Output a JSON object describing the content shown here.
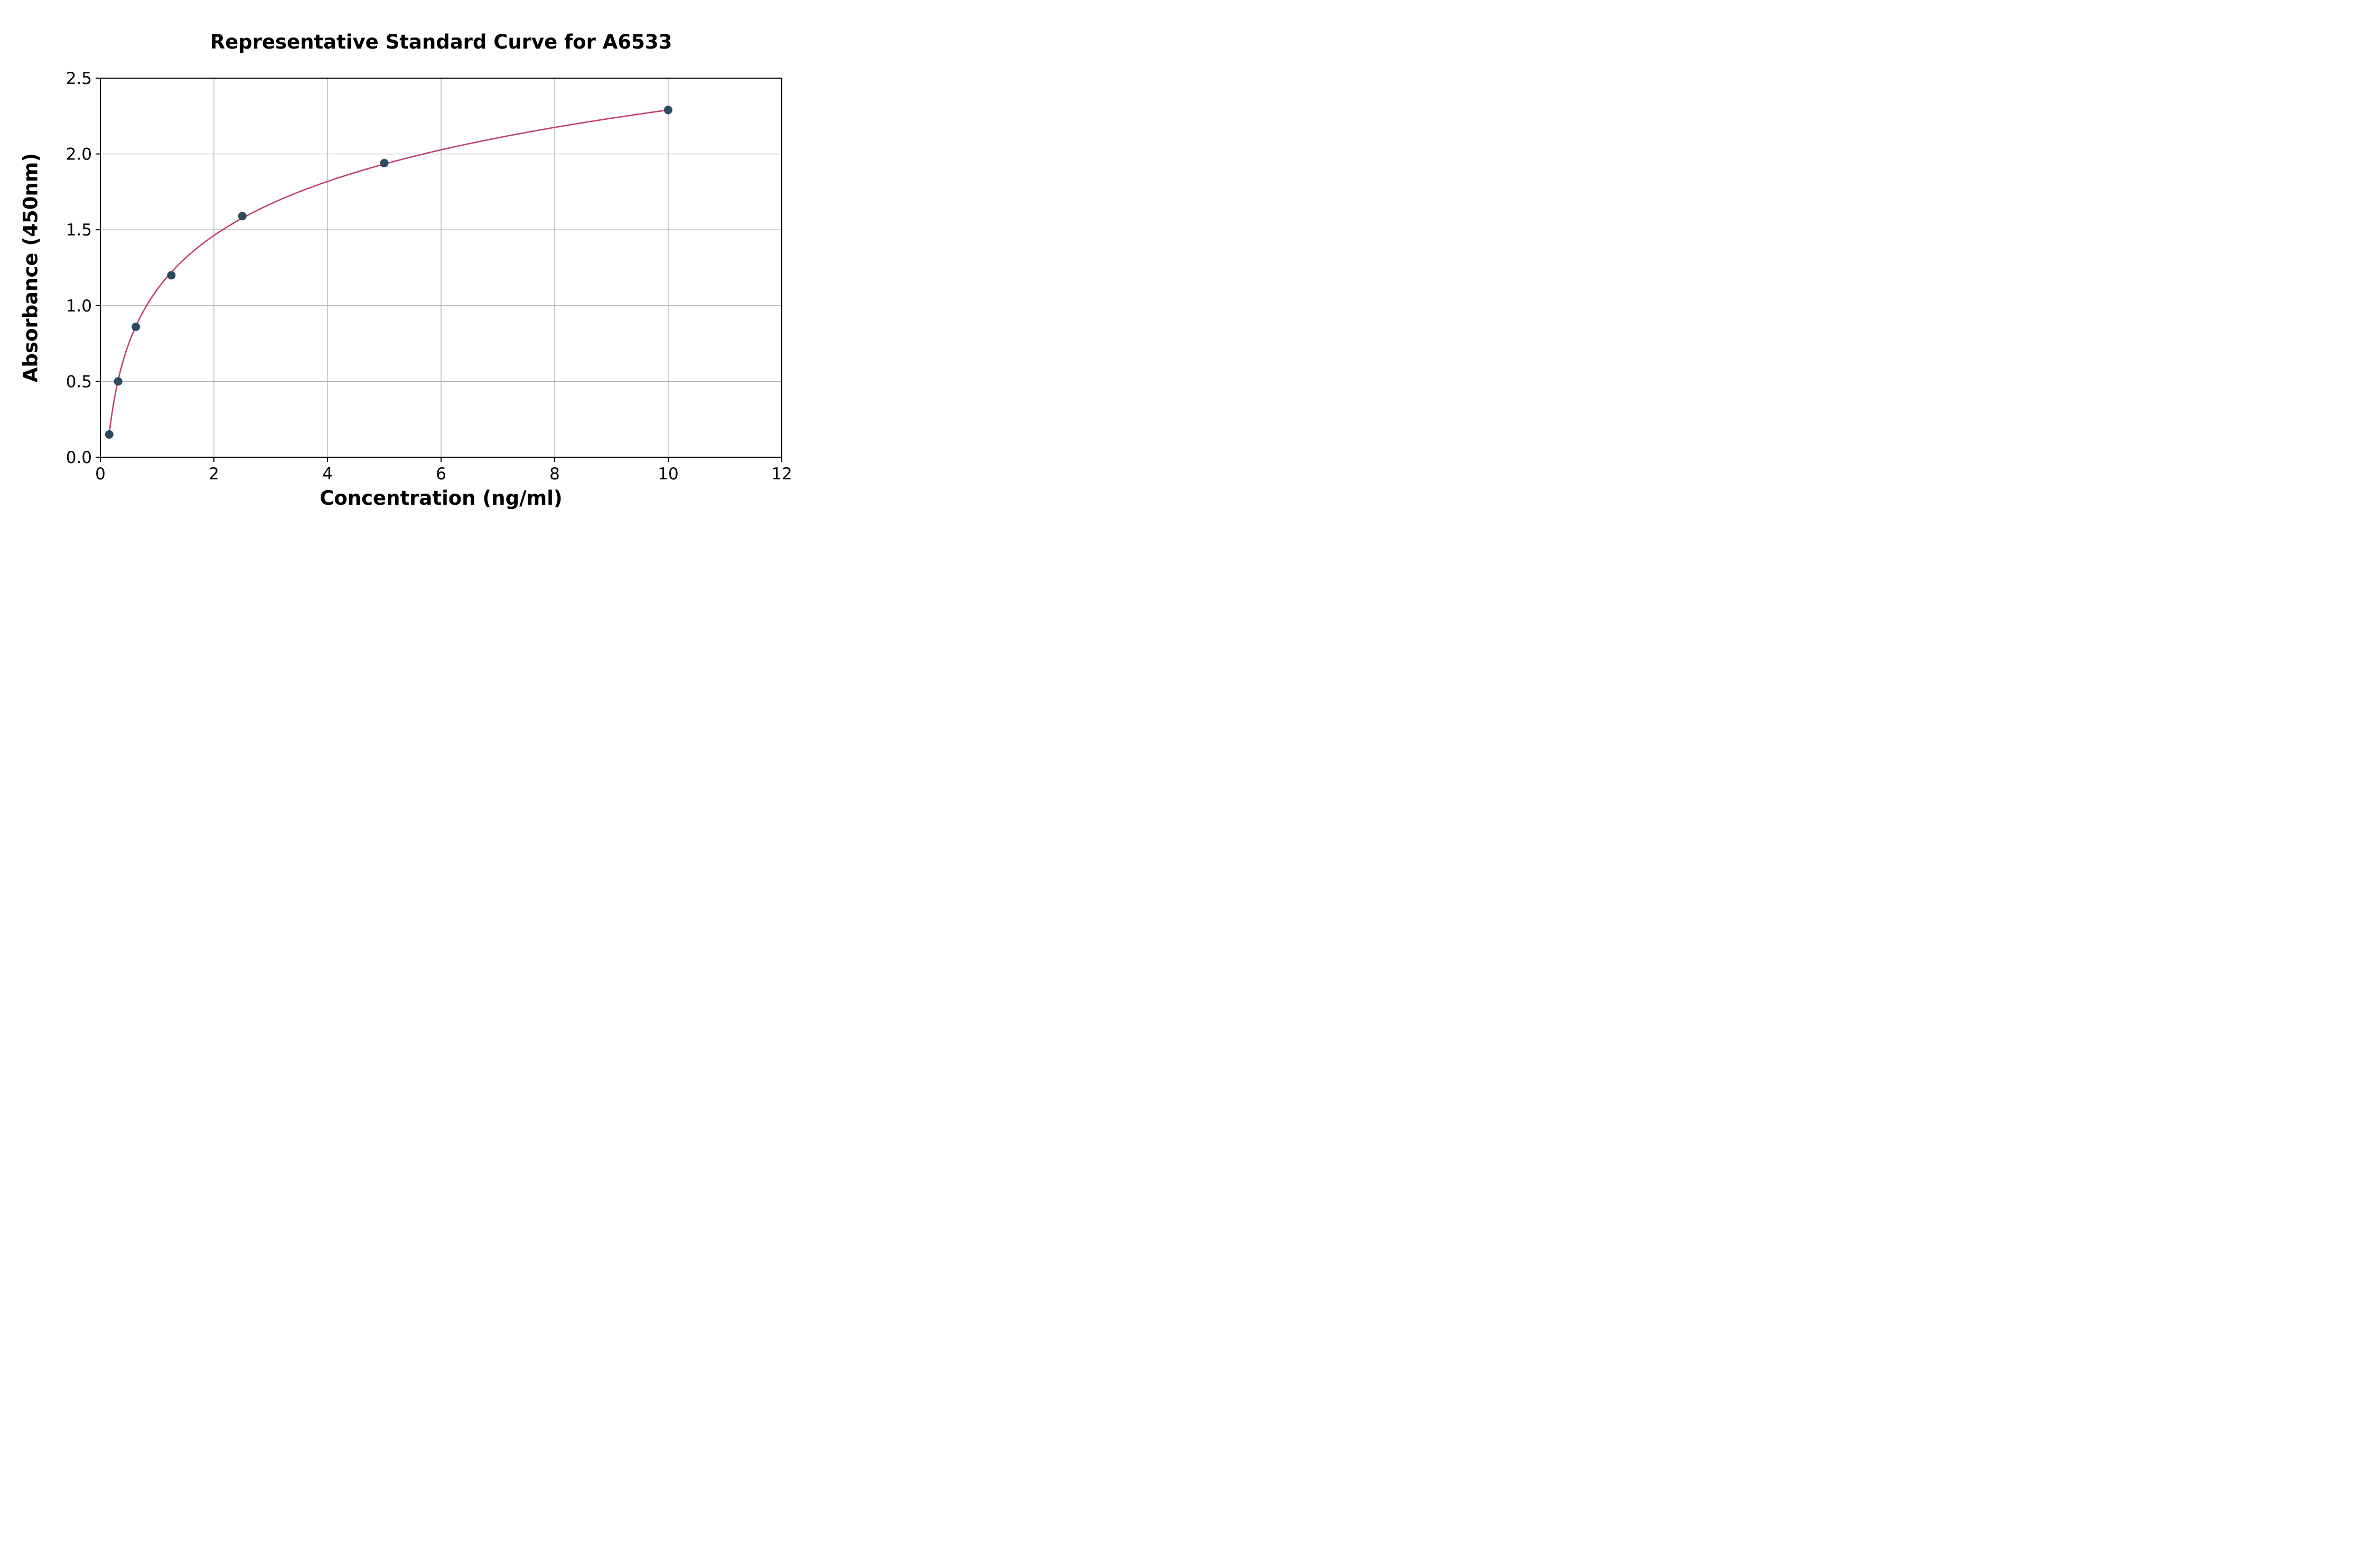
{
  "chart_data": {
    "type": "scatter",
    "title": "Representative Standard Curve for A6533",
    "xlabel": "Concentration (ng/ml)",
    "ylabel": "Absorbance (450nm)",
    "xlim": [
      0,
      12
    ],
    "ylim": [
      0,
      2.5
    ],
    "xticks": [
      0,
      2,
      4,
      6,
      8,
      10,
      12
    ],
    "xtick_labels": [
      "0",
      "2",
      "4",
      "6",
      "8",
      "10",
      "12"
    ],
    "yticks": [
      0,
      0.5,
      1.0,
      1.5,
      2.0,
      2.5
    ],
    "ytick_labels": [
      "0.0",
      "0.5",
      "1.0",
      "1.5",
      "2.0",
      "2.5"
    ],
    "grid": true,
    "legend": "none",
    "points": [
      {
        "x": 0.156,
        "y": 0.15
      },
      {
        "x": 0.313,
        "y": 0.5
      },
      {
        "x": 0.625,
        "y": 0.86
      },
      {
        "x": 1.25,
        "y": 1.2
      },
      {
        "x": 2.5,
        "y": 1.59
      },
      {
        "x": 5.0,
        "y": 1.94
      },
      {
        "x": 10.0,
        "y": 2.29
      }
    ],
    "fit_curve": {
      "model": "y = a + b*ln(x)",
      "a": 1.1056,
      "b": 0.5143,
      "x_start": 0.156,
      "x_end": 10.0
    },
    "colors": {
      "curve": "#c0426e",
      "point": "#2e4a62",
      "grid": "#b0b0b0",
      "axis": "#000000",
      "background": "#ffffff"
    }
  }
}
